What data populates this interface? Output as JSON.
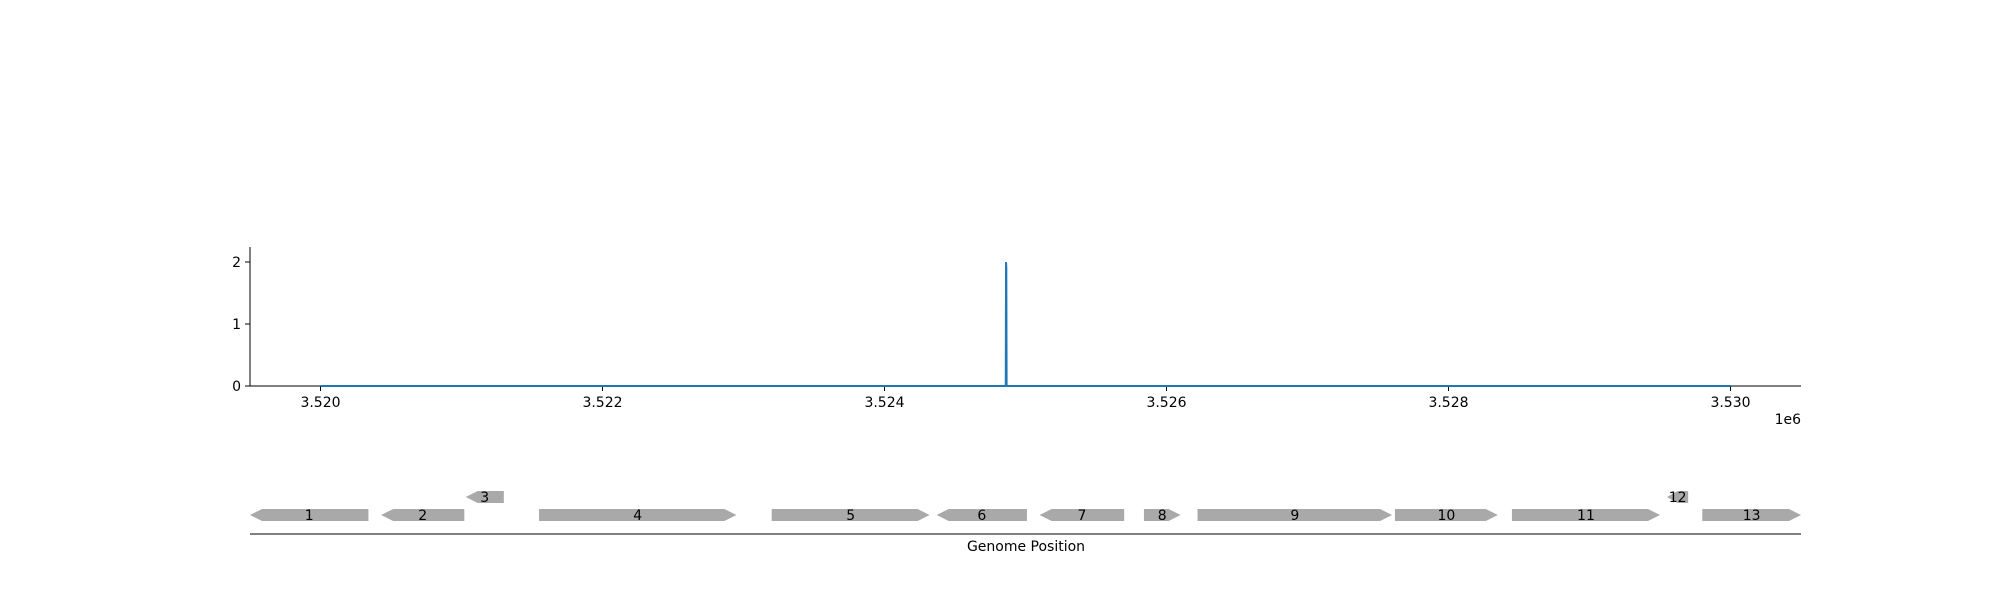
{
  "chart_data": [
    {
      "type": "line",
      "title": "",
      "xlabel": "",
      "ylabel": "",
      "xlim": [
        3519500,
        3530500
      ],
      "ylim": [
        0,
        2.25
      ],
      "x_tick_labels": [
        "3.520",
        "3.522",
        "3.524",
        "3.526",
        "3.528",
        "3.530"
      ],
      "x_tick_values": [
        3520000,
        3522000,
        3524000,
        3526000,
        3528000,
        3530000
      ],
      "x_offset_label": "1e6",
      "y_tick_labels": [
        "0",
        "1",
        "2"
      ],
      "y_tick_values": [
        0,
        1,
        2
      ],
      "grid": false,
      "series": [
        {
          "color": "#1f77b4",
          "x": [
            3520000,
            3524860,
            3524862,
            3524864,
            3524866,
            3524868,
            3530000
          ],
          "y": [
            0,
            0,
            2,
            1.9,
            0,
            0,
            0
          ]
        }
      ]
    },
    {
      "type": "gene-track",
      "xlabel": "Genome Position",
      "xlim": [
        3519500,
        3530500
      ],
      "gene_color": "#a9a9a9",
      "genes": [
        {
          "label": "1",
          "start": 3519500,
          "end": 3520340,
          "strand": "-",
          "row": 0
        },
        {
          "label": "2",
          "start": 3520430,
          "end": 3521020,
          "strand": "-",
          "row": 0
        },
        {
          "label": "3",
          "start": 3521030,
          "end": 3521300,
          "strand": "-",
          "row": 1
        },
        {
          "label": "4",
          "start": 3521550,
          "end": 3522950,
          "strand": "+",
          "row": 0
        },
        {
          "label": "5",
          "start": 3523200,
          "end": 3524320,
          "strand": "+",
          "row": 0
        },
        {
          "label": "6",
          "start": 3524370,
          "end": 3525010,
          "strand": "-",
          "row": 0
        },
        {
          "label": "7",
          "start": 3525100,
          "end": 3525700,
          "strand": "-",
          "row": 0
        },
        {
          "label": "8",
          "start": 3525840,
          "end": 3526100,
          "strand": "+",
          "row": 0
        },
        {
          "label": "9",
          "start": 3526220,
          "end": 3527600,
          "strand": "+",
          "row": 0
        },
        {
          "label": "10",
          "start": 3527620,
          "end": 3528350,
          "strand": "+",
          "row": 0
        },
        {
          "label": "11",
          "start": 3528450,
          "end": 3529500,
          "strand": "+",
          "row": 0
        },
        {
          "label": "12",
          "start": 3529550,
          "end": 3529700,
          "strand": "-",
          "row": 1
        },
        {
          "label": "13",
          "start": 3529800,
          "end": 3530500,
          "strand": "+",
          "row": 0
        }
      ]
    }
  ]
}
